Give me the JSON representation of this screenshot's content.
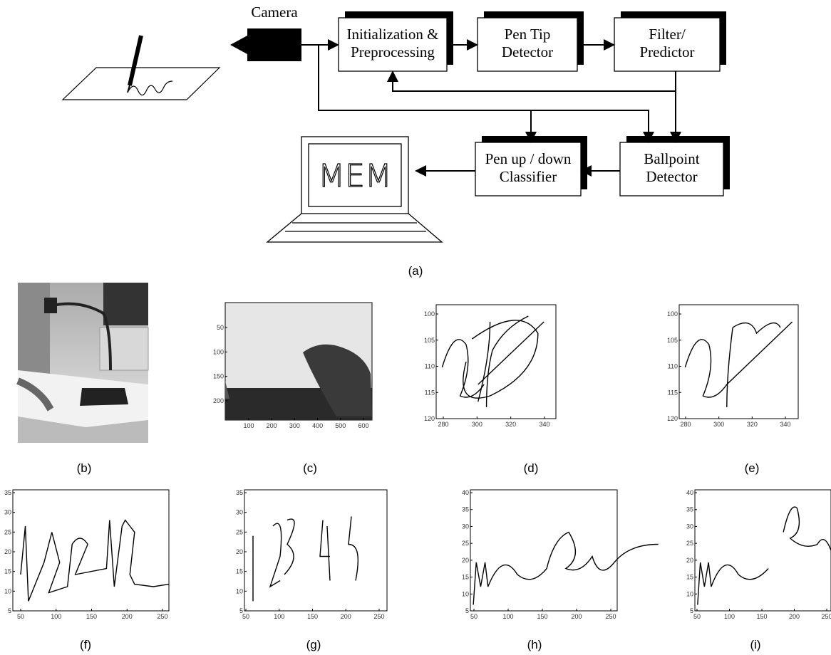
{
  "diagram": {
    "camera_label": "Camera",
    "nodes": [
      {
        "lines": [
          "Initialization &",
          "Preprocessing"
        ]
      },
      {
        "lines": [
          "Pen Tip",
          "Detector"
        ]
      },
      {
        "lines": [
          "Filter/",
          "Predictor"
        ]
      },
      {
        "lines": [
          "Pen up / down",
          "Classifier"
        ]
      },
      {
        "lines": [
          "Ballpoint",
          "Detector"
        ]
      }
    ],
    "screen_text": "MEM",
    "caption": "(a)"
  },
  "panels": [
    {
      "caption": "(b)"
    },
    {
      "caption": "(c)",
      "xticks": [
        100,
        200,
        300,
        400,
        500,
        600
      ],
      "yticks": [
        50,
        100,
        150,
        200
      ]
    },
    {
      "caption": "(d)",
      "xticks": [
        280,
        300,
        320,
        340
      ],
      "yticks": [
        100,
        105,
        110,
        115,
        120
      ]
    },
    {
      "caption": "(e)",
      "xticks": [
        280,
        300,
        320,
        340
      ],
      "yticks": [
        100,
        105,
        110,
        115,
        120
      ]
    },
    {
      "caption": "(f)",
      "xticks": [
        50,
        100,
        150,
        200,
        250
      ],
      "yticks": [
        35,
        30,
        25,
        20,
        15,
        10,
        5
      ]
    },
    {
      "caption": "(g)",
      "xticks": [
        50,
        100,
        150,
        200,
        250
      ],
      "yticks": [
        35,
        30,
        25,
        20,
        15,
        10,
        5
      ]
    },
    {
      "caption": "(h)",
      "xticks": [
        50,
        100,
        150,
        200,
        250
      ],
      "yticks": [
        40,
        35,
        30,
        25,
        20,
        15,
        10,
        5
      ]
    },
    {
      "caption": "(i)",
      "xticks": [
        50,
        100,
        150,
        200,
        250
      ],
      "yticks": [
        40,
        35,
        30,
        25,
        20,
        15,
        10,
        5
      ]
    }
  ]
}
